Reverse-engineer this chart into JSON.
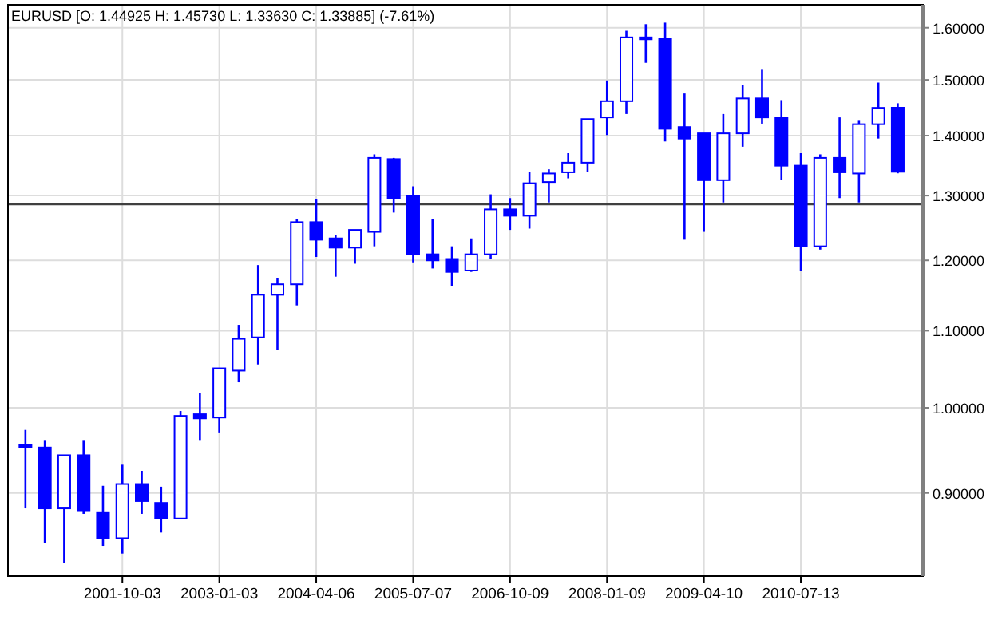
{
  "chart_data": {
    "type": "candlestick",
    "title": "EURUSD [O: 1.44925  H: 1.45730  L: 1.33630  C: 1.33885] (-7.61%)",
    "categories": [
      null,
      null,
      null,
      null,
      null,
      "2001-10-03",
      null,
      null,
      null,
      null,
      "2003-01-03",
      null,
      null,
      null,
      null,
      "2004-04-06",
      null,
      null,
      null,
      null,
      "2005-07-07",
      null,
      null,
      null,
      null,
      "2006-10-09",
      null,
      null,
      null,
      null,
      "2008-01-09",
      null,
      null,
      null,
      null,
      "2009-04-10",
      null,
      null,
      null,
      null,
      "2010-07-13",
      null,
      null,
      null,
      null,
      null
    ],
    "ohlc": [
      [
        0.955,
        0.973,
        0.883,
        0.952
      ],
      [
        0.952,
        0.96,
        0.846,
        0.883
      ],
      [
        0.883,
        0.943,
        0.825,
        0.943
      ],
      [
        0.943,
        0.96,
        0.877,
        0.88
      ],
      [
        0.878,
        0.908,
        0.843,
        0.851
      ],
      [
        0.851,
        0.932,
        0.835,
        0.91
      ],
      [
        0.91,
        0.925,
        0.877,
        0.891
      ],
      [
        0.889,
        0.907,
        0.857,
        0.872
      ],
      [
        0.872,
        0.996,
        0.872,
        0.99
      ],
      [
        0.992,
        1.018,
        0.96,
        0.987
      ],
      [
        0.988,
        1.05,
        0.969,
        1.05
      ],
      [
        1.047,
        1.108,
        1.032,
        1.089
      ],
      [
        1.091,
        1.193,
        1.055,
        1.15
      ],
      [
        1.15,
        1.174,
        1.074,
        1.165
      ],
      [
        1.165,
        1.263,
        1.135,
        1.258
      ],
      [
        1.258,
        1.294,
        1.205,
        1.231
      ],
      [
        1.233,
        1.238,
        1.176,
        1.219
      ],
      [
        1.219,
        1.246,
        1.195,
        1.246
      ],
      [
        1.243,
        1.368,
        1.221,
        1.362
      ],
      [
        1.36,
        1.362,
        1.273,
        1.296
      ],
      [
        1.299,
        1.315,
        1.197,
        1.209
      ],
      [
        1.209,
        1.263,
        1.188,
        1.2
      ],
      [
        1.202,
        1.221,
        1.162,
        1.183
      ],
      [
        1.185,
        1.233,
        1.183,
        1.209
      ],
      [
        1.209,
        1.302,
        1.202,
        1.278
      ],
      [
        1.278,
        1.296,
        1.246,
        1.268
      ],
      [
        1.268,
        1.338,
        1.248,
        1.32
      ],
      [
        1.322,
        1.343,
        1.289,
        1.336
      ],
      [
        1.338,
        1.37,
        1.328,
        1.354
      ],
      [
        1.354,
        1.429,
        1.338,
        1.429
      ],
      [
        1.432,
        1.499,
        1.401,
        1.461
      ],
      [
        1.461,
        1.594,
        1.438,
        1.581
      ],
      [
        1.581,
        1.607,
        1.532,
        1.578
      ],
      [
        1.578,
        1.61,
        1.39,
        1.412
      ],
      [
        1.415,
        1.475,
        1.231,
        1.395
      ],
      [
        1.404,
        1.404,
        1.243,
        1.325
      ],
      [
        1.325,
        1.438,
        1.289,
        1.404
      ],
      [
        1.404,
        1.49,
        1.381,
        1.466
      ],
      [
        1.466,
        1.519,
        1.421,
        1.432
      ],
      [
        1.432,
        1.463,
        1.325,
        1.349
      ],
      [
        1.349,
        1.37,
        1.185,
        1.221
      ],
      [
        1.221,
        1.368,
        1.216,
        1.362
      ],
      [
        1.362,
        1.432,
        1.296,
        1.338
      ],
      [
        1.336,
        1.426,
        1.289,
        1.42
      ],
      [
        1.42,
        1.495,
        1.395,
        1.449
      ],
      [
        1.44925,
        1.4573,
        1.3363,
        1.33885
      ]
    ],
    "color": "#0000ff",
    "log": "y",
    "ylim": [
      0.812,
      1.646
    ],
    "yticks": [
      {
        "value": 0.9,
        "label": "0.90000"
      },
      {
        "value": 1.0,
        "label": "1.00000"
      },
      {
        "value": 1.1,
        "label": "1.10000"
      },
      {
        "value": 1.2,
        "label": "1.20000"
      },
      {
        "value": 1.3,
        "label": "1.30000"
      },
      {
        "value": 1.4,
        "label": "1.40000"
      },
      {
        "value": 1.5,
        "label": "1.50000"
      },
      {
        "value": 1.6,
        "label": "1.60000"
      }
    ],
    "grid": true,
    "ref_lines": [
      {
        "axis": "y",
        "value": 1.286,
        "color": "#404040"
      }
    ]
  }
}
